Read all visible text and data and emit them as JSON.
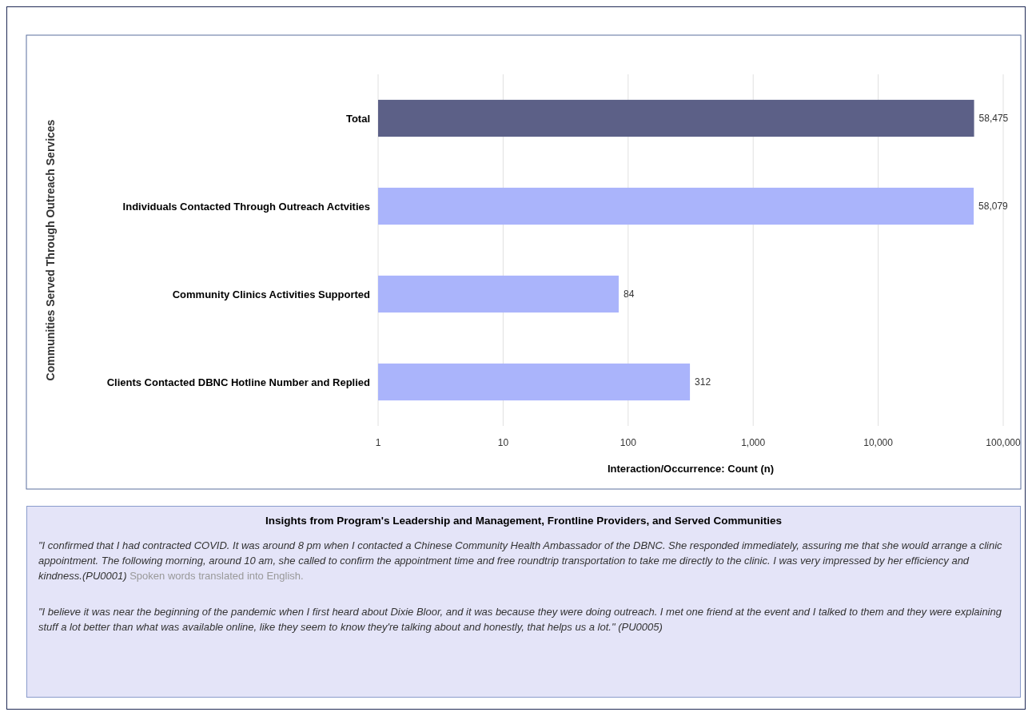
{
  "chart_data": [
    {
      "type": "bar",
      "orientation": "horizontal",
      "ylabel": "Communities Served Through Outreach Services",
      "xlabel": "Interaction/Occurrence: Count (n)",
      "categories": [
        "Total",
        "Individuals Contacted Through Outreach Actvities",
        "Community Clinics Activities Supported",
        "Clients Contacted DBNC Hotline Number and Replied"
      ],
      "values": [
        58475,
        58079,
        84,
        312
      ],
      "colors": [
        "#5c6087",
        "#aab4fb",
        "#aab4fb",
        "#aab4fb"
      ],
      "value_labels": [
        "58,475",
        "58,079",
        "84",
        "312"
      ],
      "log": "x",
      "xlim": [
        1,
        100000
      ],
      "xticks": [
        1,
        10,
        100,
        {
          "value": 1000,
          "label": "1,000"
        },
        {
          "value": 10000,
          "label": "10,000"
        },
        {
          "value": 100000,
          "label": "100,000"
        }
      ],
      "grid": "x"
    },
    {
      "type": "other",
      "title": "Insights from Program's Leadership and Management, Frontline Providers, and Served Communities",
      "annotations": [
        "\"I confirmed that I had contracted COVID. It was around 8 pm when I contacted a Chinese Community Health Ambassador of the DBNC. She responded immediately, assuring me that she would arrange a clinic appointment. The following morning, around 10 am, she called to confirm the appointment time and free roundtrip transportation to take me directly to the clinic. I was very impressed by her efficiency and kindness.(PU0001)",
        "Spoken words translated into English.",
        "\"I believe it was near the beginning of the pandemic when I first heard about Dixie Bloor, and it was because they were doing outreach. I met one friend at the event and I talked to them and they were explaining stuff a lot better than what was available online, like they seem to know they're talking about and honestly, that helps us a lot.\" (PU0005)"
      ]
    }
  ]
}
